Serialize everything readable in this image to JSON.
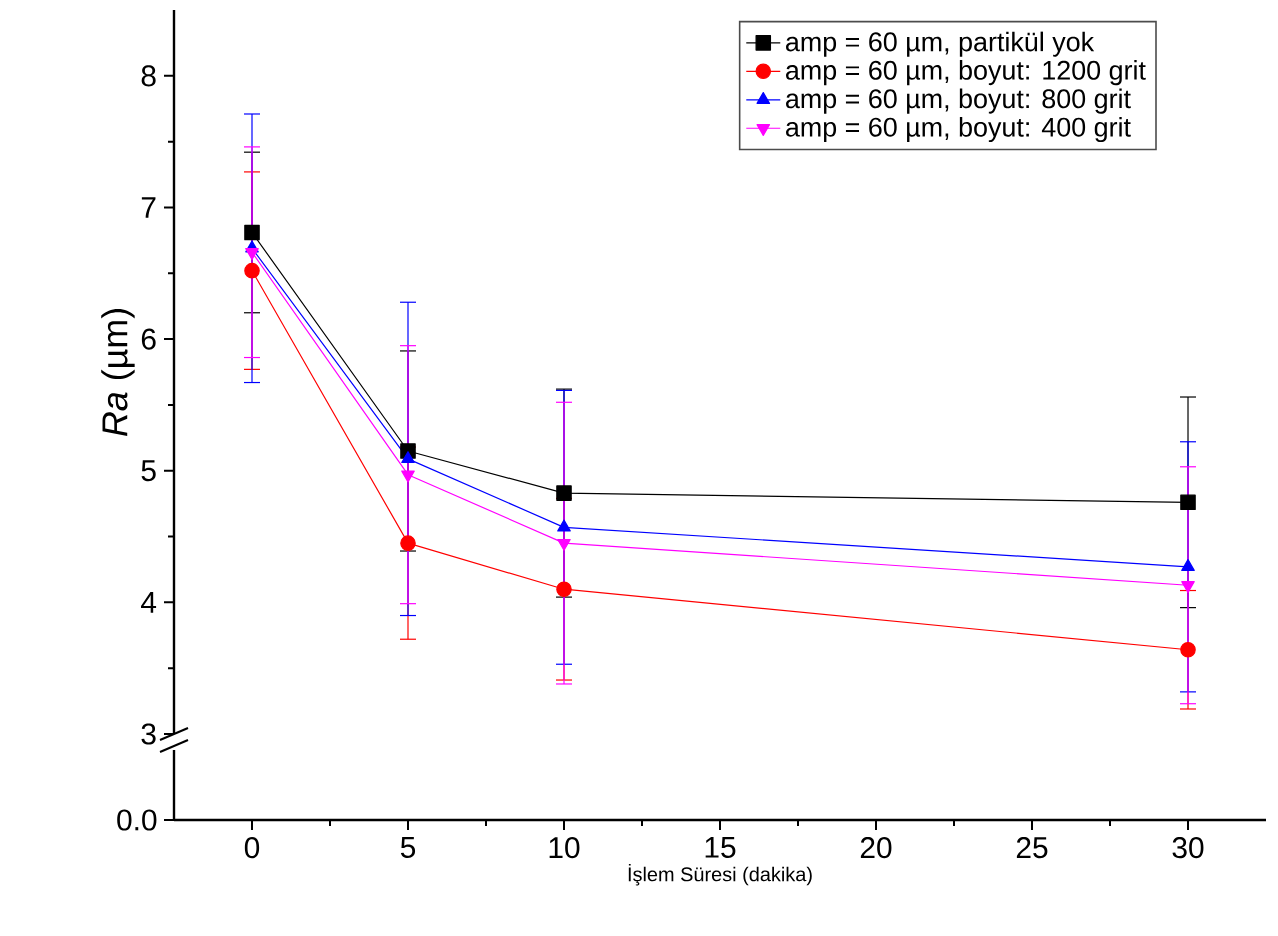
{
  "chart_data": {
    "type": "line",
    "xlabel": "İşlem Süresi (dakika)",
    "ylabel": "*Ra* (µm)",
    "xlim": [
      -2.5,
      32.5
    ],
    "xticks": [
      0,
      5,
      10,
      15,
      20,
      25,
      30
    ],
    "ylim": [
      3,
      8.5
    ],
    "yticks": [
      3,
      4,
      5,
      6,
      7,
      8
    ],
    "legend": "top right",
    "annotations": [
      "0.0"
    ],
    "x": [
      0,
      5,
      10,
      30
    ],
    "series": [
      {
        "name": "amp = 60 µm, partikül yok",
        "color": "#000000",
        "marker": "square",
        "values": [
          6.81,
          5.15,
          4.83,
          4.76
        ],
        "errors": [
          0.61,
          0.76,
          0.79,
          0.8
        ]
      },
      {
        "name": "amp = 60 µm, boyut: 1200 grit",
        "color": "#ff0000",
        "marker": "circle",
        "values": [
          6.52,
          4.45,
          4.1,
          3.64
        ],
        "errors": [
          0.75,
          0.73,
          0.69,
          0.45
        ]
      },
      {
        "name": "amp = 60 µm, boyut: 800 grit",
        "color": "#0000ff",
        "marker": "triangle",
        "values": [
          6.69,
          5.09,
          4.57,
          4.27
        ],
        "errors": [
          1.02,
          1.19,
          1.04,
          0.95
        ]
      },
      {
        "name": "amp = 60 µm, boyut: 400 grit",
        "color": "#ff00ff",
        "marker": "triangle-down",
        "values": [
          6.66,
          4.97,
          4.45,
          4.13
        ],
        "errors": [
          0.8,
          0.98,
          1.07,
          0.9
        ]
      }
    ]
  }
}
